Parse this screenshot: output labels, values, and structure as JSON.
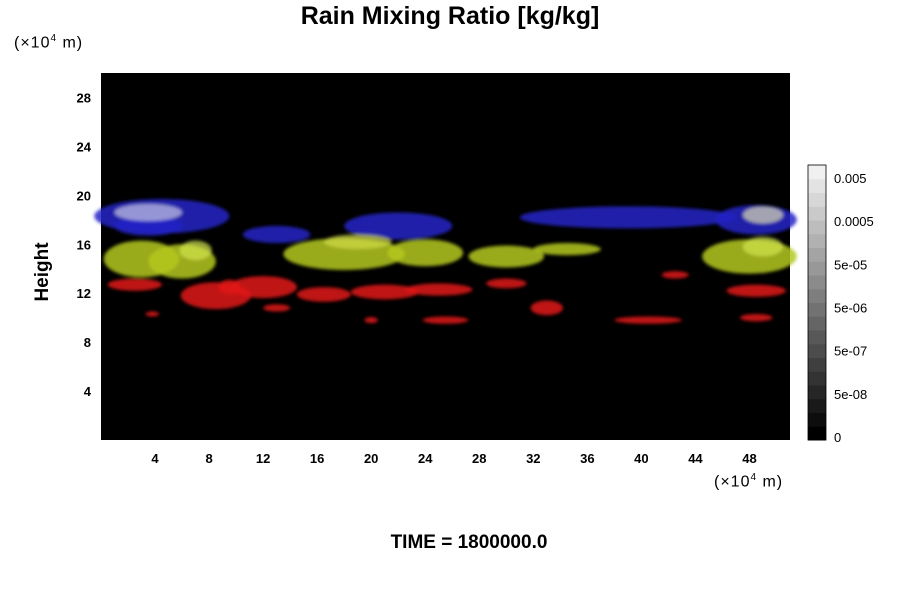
{
  "chart_data": {
    "type": "heatmap",
    "title": "Rain Mixing Ratio [kg/kg]",
    "ylabel": "Height",
    "xunit": {
      "prefix": "(×10",
      "exp": "4",
      "suffix": " m)"
    },
    "yunit": {
      "prefix": "(×10",
      "exp": "4",
      "suffix": " m)"
    },
    "xlim": [
      0,
      51
    ],
    "ylim": [
      0,
      30
    ],
    "x_ticks": [
      "4",
      "8",
      "12",
      "16",
      "20",
      "24",
      "28",
      "32",
      "36",
      "40",
      "44",
      "48"
    ],
    "y_ticks": [
      "4",
      "8",
      "12",
      "16",
      "20",
      "24",
      "28"
    ],
    "colorbar_labels": [
      "0.005",
      "0.0005",
      "5e-05",
      "5e-06",
      "5e-07",
      "5e-08",
      "0"
    ],
    "background_color": "#000000",
    "bands": [
      {
        "color": "#2323c8",
        "x_range": [
          0,
          51
        ],
        "y_range": [
          16.5,
          20
        ]
      },
      {
        "color": "#b4c81e",
        "x_range": [
          0,
          51
        ],
        "y_range": [
          12.5,
          17
        ]
      },
      {
        "color": "#e11919",
        "x_range": [
          0,
          51
        ],
        "y_range": [
          9.5,
          14
        ]
      }
    ]
  },
  "footer": {
    "time_label": "TIME = 1800000.0"
  }
}
